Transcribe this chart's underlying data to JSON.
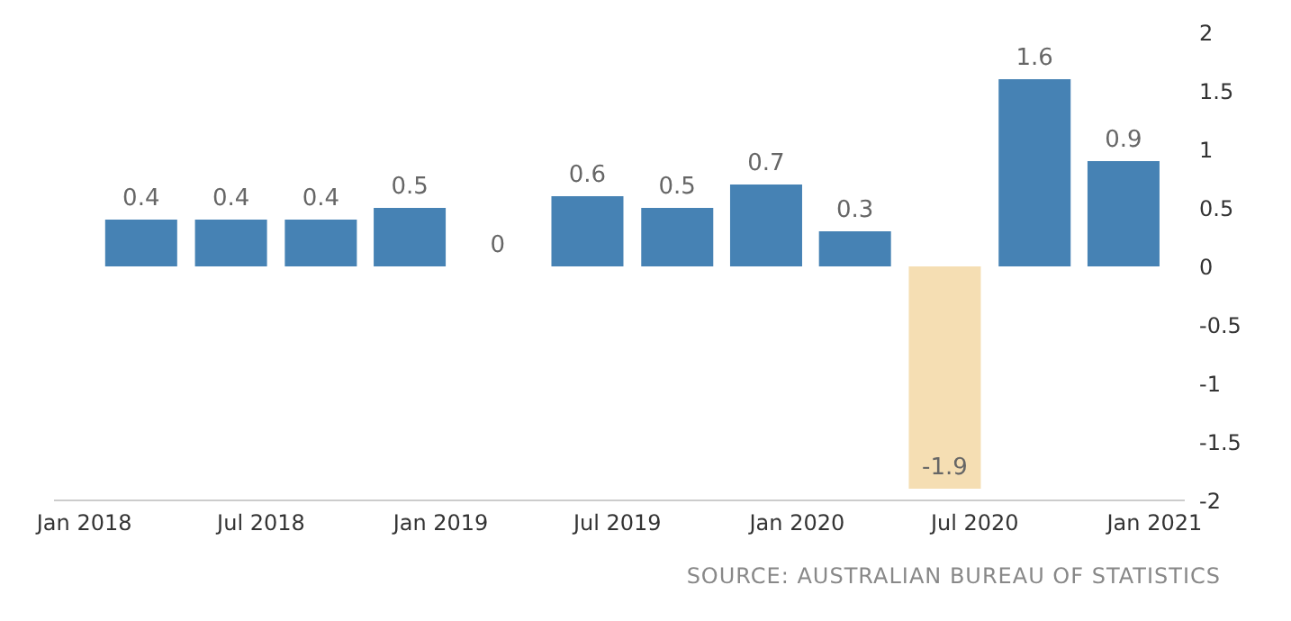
{
  "chart_data": {
    "type": "bar",
    "x": [
      "2018-03",
      "2018-06",
      "2018-09",
      "2018-12",
      "2019-03",
      "2019-06",
      "2019-09",
      "2019-12",
      "2020-03",
      "2020-06",
      "2020-09",
      "2020-12"
    ],
    "values": [
      0.4,
      0.4,
      0.4,
      0.5,
      0,
      0.6,
      0.5,
      0.7,
      0.3,
      -1.9,
      1.6,
      0.9
    ],
    "colors": [
      "#4682b4",
      "#4682b4",
      "#4682b4",
      "#4682b4",
      "#4682b4",
      "#4682b4",
      "#4682b4",
      "#4682b4",
      "#4682b4",
      "#f5deb3",
      "#4682b4",
      "#4682b4"
    ],
    "data_labels": true,
    "xlim": [
      "2017-12",
      "2021-02"
    ],
    "xticks": [
      {
        "value": "2018-01",
        "label": "Jan 2018"
      },
      {
        "value": "2018-07",
        "label": "Jul 2018"
      },
      {
        "value": "2019-01",
        "label": "Jan 2019"
      },
      {
        "value": "2019-07",
        "label": "Jul 2019"
      },
      {
        "value": "2020-01",
        "label": "Jan 2020"
      },
      {
        "value": "2020-07",
        "label": "Jul 2020"
      },
      {
        "value": "2021-01",
        "label": "Jan 2021"
      }
    ],
    "ylim": [
      -2,
      2
    ],
    "yticks": [
      -2,
      -1.5,
      -1,
      -0.5,
      0,
      0.5,
      1,
      1.5,
      2
    ],
    "annotations": [
      "SOURCE: AUSTRALIAN BUREAU OF STATISTICS"
    ]
  }
}
